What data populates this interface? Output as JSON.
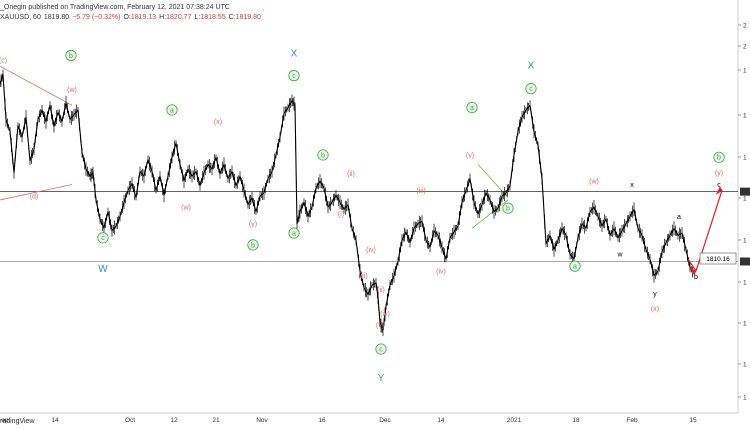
{
  "header": {
    "author_line": "_Onegin published on TradingView.com, February 12, 2021 07:38:24 UTC",
    "symbol_line": "XAUUSD, 60",
    "last": "1819.80",
    "change": "−5.79 (−0.32%)",
    "open_label": "O:",
    "open": "1819.13",
    "high_label": "H:",
    "high": "1820.77",
    "low_label": "L:",
    "low": "1818.55",
    "close_label": "C:",
    "close": "1819.80"
  },
  "footer": {
    "brand": "radingView"
  },
  "price_label": {
    "value": "1810.16"
  },
  "colors": {
    "red": "#e06a6a",
    "green": "#3aaa3a",
    "blue": "#2f8fd3",
    "black": "#000000",
    "arrow_red": "#e62020"
  },
  "chart_data": {
    "type": "line",
    "x_ticks": [
      "ep",
      "14",
      "Oct",
      "12",
      "21",
      "Nov",
      "16",
      "Dec",
      "14",
      "2021",
      "18",
      "Feb",
      "15"
    ],
    "y_ticks": [
      "2",
      "2",
      "1",
      "1",
      "1",
      "1",
      "1",
      "1",
      "1",
      "1",
      "1"
    ],
    "series": [
      {
        "values": [
          [
            0,
            1980
          ],
          [
            3,
            1988
          ],
          [
            6,
            1950
          ],
          [
            10,
            1940
          ],
          [
            14,
            1905
          ],
          [
            18,
            1945
          ],
          [
            22,
            1935
          ],
          [
            26,
            1952
          ],
          [
            30,
            1915
          ],
          [
            34,
            1925
          ],
          [
            38,
            1950
          ],
          [
            42,
            1958
          ],
          [
            46,
            1948
          ],
          [
            50,
            1962
          ],
          [
            54,
            1944
          ],
          [
            58,
            1956
          ],
          [
            62,
            1948
          ],
          [
            66,
            1964
          ],
          [
            70,
            1950
          ],
          [
            74,
            1954
          ],
          [
            78,
            1958
          ],
          [
            82,
            1922
          ],
          [
            86,
            1908
          ],
          [
            90,
            1902
          ],
          [
            93,
            1905
          ],
          [
            96,
            1882
          ],
          [
            100,
            1866
          ],
          [
            104,
            1858
          ],
          [
            108,
            1872
          ],
          [
            112,
            1856
          ],
          [
            116,
            1860
          ],
          [
            120,
            1868
          ],
          [
            124,
            1880
          ],
          [
            128,
            1890
          ],
          [
            132,
            1896
          ],
          [
            136,
            1884
          ],
          [
            140,
            1906
          ],
          [
            144,
            1902
          ],
          [
            148,
            1916
          ],
          [
            152,
            1906
          ],
          [
            156,
            1890
          ],
          [
            160,
            1902
          ],
          [
            164,
            1886
          ],
          [
            168,
            1902
          ],
          [
            172,
            1918
          ],
          [
            176,
            1930
          ],
          [
            180,
            1912
          ],
          [
            184,
            1898
          ],
          [
            188,
            1908
          ],
          [
            192,
            1902
          ],
          [
            196,
            1906
          ],
          [
            200,
            1894
          ],
          [
            204,
            1905
          ],
          [
            208,
            1912
          ],
          [
            212,
            1908
          ],
          [
            216,
            1918
          ],
          [
            220,
            1904
          ],
          [
            224,
            1912
          ],
          [
            228,
            1900
          ],
          [
            232,
            1906
          ],
          [
            236,
            1894
          ],
          [
            240,
            1902
          ],
          [
            244,
            1890
          ],
          [
            248,
            1878
          ],
          [
            252,
            1884
          ],
          [
            256,
            1872
          ],
          [
            260,
            1885
          ],
          [
            264,
            1888
          ],
          [
            268,
            1900
          ],
          [
            272,
            1906
          ],
          [
            276,
            1920
          ],
          [
            280,
            1935
          ],
          [
            284,
            1955
          ],
          [
            288,
            1960
          ],
          [
            292,
            1966
          ],
          [
            295,
            1962
          ],
          [
            297,
            1862
          ],
          [
            300,
            1872
          ],
          [
            304,
            1880
          ],
          [
            308,
            1868
          ],
          [
            312,
            1876
          ],
          [
            316,
            1892
          ],
          [
            320,
            1898
          ],
          [
            324,
            1892
          ],
          [
            328,
            1876
          ],
          [
            332,
            1880
          ],
          [
            336,
            1886
          ],
          [
            340,
            1880
          ],
          [
            344,
            1874
          ],
          [
            348,
            1878
          ],
          [
            352,
            1858
          ],
          [
            356,
            1848
          ],
          [
            360,
            1822
          ],
          [
            364,
            1808
          ],
          [
            368,
            1802
          ],
          [
            372,
            1810
          ],
          [
            376,
            1812
          ],
          [
            378,
            1800
          ],
          [
            380,
            1778
          ],
          [
            383,
            1772
          ],
          [
            386,
            1792
          ],
          [
            390,
            1810
          ],
          [
            394,
            1818
          ],
          [
            398,
            1830
          ],
          [
            402,
            1848
          ],
          [
            406,
            1855
          ],
          [
            410,
            1846
          ],
          [
            414,
            1858
          ],
          [
            418,
            1862
          ],
          [
            422,
            1864
          ],
          [
            426,
            1848
          ],
          [
            430,
            1842
          ],
          [
            434,
            1856
          ],
          [
            438,
            1852
          ],
          [
            442,
            1842
          ],
          [
            446,
            1832
          ],
          [
            450,
            1850
          ],
          [
            454,
            1855
          ],
          [
            458,
            1860
          ],
          [
            462,
            1880
          ],
          [
            466,
            1890
          ],
          [
            470,
            1900
          ],
          [
            474,
            1880
          ],
          [
            478,
            1870
          ],
          [
            482,
            1878
          ],
          [
            486,
            1888
          ],
          [
            490,
            1882
          ],
          [
            494,
            1872
          ],
          [
            498,
            1875
          ],
          [
            502,
            1885
          ],
          [
            506,
            1888
          ],
          [
            510,
            1894
          ],
          [
            514,
            1920
          ],
          [
            518,
            1940
          ],
          [
            522,
            1952
          ],
          [
            526,
            1958
          ],
          [
            530,
            1962
          ],
          [
            534,
            1940
          ],
          [
            538,
            1928
          ],
          [
            542,
            1900
          ],
          [
            546,
            1845
          ],
          [
            550,
            1852
          ],
          [
            554,
            1840
          ],
          [
            558,
            1848
          ],
          [
            562,
            1858
          ],
          [
            566,
            1852
          ],
          [
            570,
            1836
          ],
          [
            574,
            1832
          ],
          [
            578,
            1850
          ],
          [
            582,
            1862
          ],
          [
            586,
            1858
          ],
          [
            590,
            1872
          ],
          [
            594,
            1876
          ],
          [
            598,
            1868
          ],
          [
            602,
            1860
          ],
          [
            606,
            1866
          ],
          [
            610,
            1852
          ],
          [
            614,
            1858
          ],
          [
            618,
            1850
          ],
          [
            622,
            1856
          ],
          [
            626,
            1862
          ],
          [
            630,
            1868
          ],
          [
            634,
            1874
          ],
          [
            638,
            1858
          ],
          [
            642,
            1852
          ],
          [
            646,
            1840
          ],
          [
            650,
            1832
          ],
          [
            654,
            1818
          ],
          [
            658,
            1822
          ],
          [
            662,
            1838
          ],
          [
            666,
            1846
          ],
          [
            670,
            1852
          ],
          [
            674,
            1858
          ],
          [
            678,
            1852
          ],
          [
            682,
            1854
          ],
          [
            686,
            1840
          ],
          [
            690,
            1825
          ],
          [
            694,
            1820
          ]
        ]
      }
    ],
    "horizontal_lines": [
      1889,
      1830
    ],
    "annotations": [
      {
        "text": "(c)",
        "kind": "red",
        "x": 3,
        "p": 2000
      },
      {
        "text": "(w)",
        "kind": "red",
        "x": 72,
        "p": 1975
      },
      {
        "text": "(d)",
        "kind": "red",
        "x": 34,
        "p": 1885
      },
      {
        "text": "b",
        "kind": "green-circle",
        "x": 71,
        "p": 2004
      },
      {
        "text": "c",
        "kind": "green-circle",
        "x": 103,
        "p": 1850
      },
      {
        "text": "W",
        "kind": "blue",
        "x": 103,
        "p": 1824
      },
      {
        "text": "a",
        "kind": "green-circle",
        "x": 172,
        "p": 1958
      },
      {
        "text": "(x)",
        "kind": "red",
        "x": 218,
        "p": 1948
      },
      {
        "text": "(w)",
        "kind": "red",
        "x": 186,
        "p": 1876
      },
      {
        "text": "(y)",
        "kind": "red",
        "x": 253,
        "p": 1862
      },
      {
        "text": "b",
        "kind": "green-circle",
        "x": 253,
        "p": 1844
      },
      {
        "text": "X",
        "kind": "blue",
        "x": 294,
        "p": 2006
      },
      {
        "text": "c",
        "kind": "green-circle",
        "x": 294,
        "p": 1987
      },
      {
        "text": "a",
        "kind": "green-circle",
        "x": 294,
        "p": 1854
      },
      {
        "text": "b",
        "kind": "green-circle",
        "x": 323,
        "p": 1920
      },
      {
        "text": "(ii)",
        "kind": "red",
        "x": 351,
        "p": 1904
      },
      {
        "text": "(i)",
        "kind": "red",
        "x": 341,
        "p": 1870
      },
      {
        "text": "(iv)",
        "kind": "red",
        "x": 371,
        "p": 1840
      },
      {
        "text": "(iii)",
        "kind": "red",
        "x": 363,
        "p": 1818
      },
      {
        "text": "(ii)",
        "kind": "red",
        "x": 381,
        "p": 1806
      },
      {
        "text": "(iv)",
        "kind": "red",
        "x": 385,
        "p": 1786
      },
      {
        "text": "(v)",
        "kind": "red",
        "x": 380,
        "p": 1776
      },
      {
        "text": "c",
        "kind": "green-circle",
        "x": 381,
        "p": 1756
      },
      {
        "text": "Y",
        "kind": "blue",
        "x": 381,
        "p": 1732
      },
      {
        "text": "(iii)",
        "kind": "red",
        "x": 421,
        "p": 1890
      },
      {
        "text": "(iv)",
        "kind": "red",
        "x": 441,
        "p": 1822
      },
      {
        "text": "a",
        "kind": "green-circle",
        "x": 472,
        "p": 1960
      },
      {
        "text": "(v)",
        "kind": "red",
        "x": 470,
        "p": 1920
      },
      {
        "text": "b",
        "kind": "green-circle",
        "x": 508,
        "p": 1875
      },
      {
        "text": "X",
        "kind": "blue",
        "x": 531,
        "p": 1996
      },
      {
        "text": "c",
        "kind": "green-circle",
        "x": 531,
        "p": 1976
      },
      {
        "text": "(w)",
        "kind": "red",
        "x": 594,
        "p": 1898
      },
      {
        "text": "a",
        "kind": "green-circle",
        "x": 575,
        "p": 1826
      },
      {
        "text": "x",
        "kind": "black",
        "x": 632,
        "p": 1895
      },
      {
        "text": "w",
        "kind": "black",
        "x": 620,
        "p": 1836
      },
      {
        "text": "y",
        "kind": "black",
        "x": 655,
        "p": 1803
      },
      {
        "text": "(x)",
        "kind": "red",
        "x": 655,
        "p": 1790
      },
      {
        "text": "a",
        "kind": "black",
        "x": 679,
        "p": 1868
      },
      {
        "text": "b",
        "kind": "black",
        "x": 696,
        "p": 1817
      },
      {
        "text": "b",
        "kind": "green-circle",
        "x": 719,
        "p": 1918
      },
      {
        "text": "(y)",
        "kind": "red",
        "x": 719,
        "p": 1905
      },
      {
        "text": "c",
        "kind": "black",
        "x": 719,
        "p": 1895
      }
    ]
  }
}
